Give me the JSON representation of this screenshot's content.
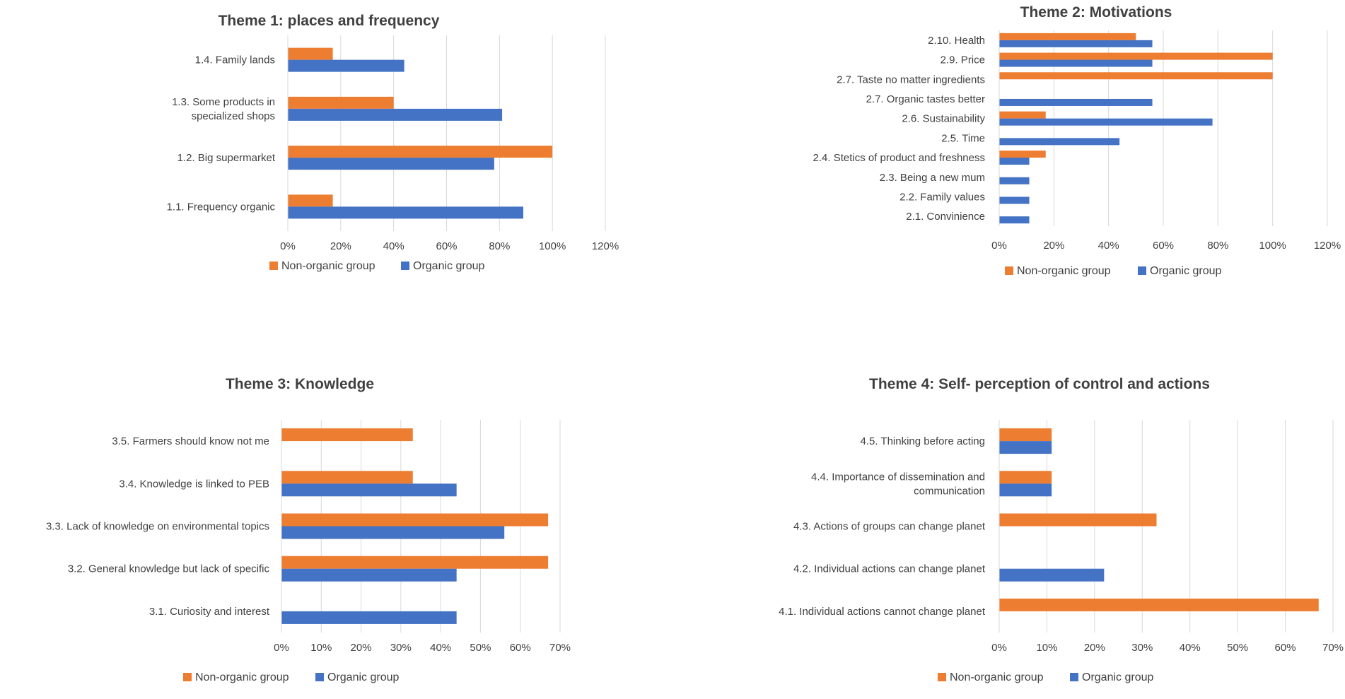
{
  "colors": {
    "non_organic": "#ED7D31",
    "organic": "#4472C4",
    "grid": "#D9D9D9",
    "text": "#404040"
  },
  "legend": {
    "non_organic": "Non-organic group",
    "organic": "Organic group"
  },
  "chart_data": [
    {
      "type": "bar",
      "orientation": "horizontal",
      "title": "Theme 1: places and frequency",
      "categories": [
        "1.1. Frequency organic",
        "1.2. Big supermarket",
        "1.3. Some products in specialized shops",
        "1.4. Family lands"
      ],
      "category_lines": [
        [
          "1.1. Frequency organic"
        ],
        [
          "1.2. Big supermarket"
        ],
        [
          "1.3. Some products in",
          "specialized shops"
        ],
        [
          "1.4. Family lands"
        ]
      ],
      "series": [
        {
          "name": "Non-organic group",
          "key": "non_organic",
          "values": [
            17,
            100,
            40,
            17
          ]
        },
        {
          "name": "Organic group",
          "key": "organic",
          "values": [
            89,
            78,
            81,
            44
          ]
        }
      ],
      "xlim": [
        0,
        120
      ],
      "ticks": [
        "0%",
        "20%",
        "40%",
        "60%",
        "80%",
        "100%",
        "120%"
      ],
      "legend_position": "bottom"
    },
    {
      "type": "bar",
      "orientation": "horizontal",
      "title": "Theme 2: Motivations",
      "categories": [
        "2.1. Convinience",
        "2.2. Family values",
        "2.3. Being a new mum",
        "2.4. Stetics of product and freshness",
        "2.5. Time",
        "2.6. Sustainability",
        "2.7. Organic tastes better",
        "2.7. Taste no matter ingredients",
        "2.9. Price",
        "2.10. Health"
      ],
      "category_lines": [
        [
          "2.1. Convinience"
        ],
        [
          "2.2. Family values"
        ],
        [
          "2.3. Being a new mum"
        ],
        [
          "2.4. Stetics of product and freshness"
        ],
        [
          "2.5. Time"
        ],
        [
          "2.6. Sustainability"
        ],
        [
          "2.7. Organic tastes better"
        ],
        [
          "2.7. Taste no matter ingredients"
        ],
        [
          "2.9. Price"
        ],
        [
          "2.10. Health"
        ]
      ],
      "series": [
        {
          "name": "Non-organic group",
          "key": "non_organic",
          "values": [
            0,
            0,
            0,
            17,
            0,
            17,
            0,
            100,
            100,
            50
          ]
        },
        {
          "name": "Organic group",
          "key": "organic",
          "values": [
            11,
            11,
            11,
            11,
            44,
            78,
            56,
            0,
            56,
            56
          ]
        }
      ],
      "xlim": [
        0,
        120
      ],
      "ticks": [
        "0%",
        "20%",
        "40%",
        "60%",
        "80%",
        "100%",
        "120%"
      ],
      "legend_position": "bottom"
    },
    {
      "type": "bar",
      "orientation": "horizontal",
      "title": "Theme 3: Knowledge",
      "categories": [
        "3.1. Curiosity and interest",
        "3.2. General knowledge but lack of specific",
        "3.3. Lack of knowledge on environmental topics",
        "3.4. Knowledge is linked to PEB",
        "3.5. Farmers should know not me"
      ],
      "category_lines": [
        [
          "3.1. Curiosity and interest"
        ],
        [
          "3.2. General knowledge but lack of specific"
        ],
        [
          "3.3. Lack of knowledge on environmental topics"
        ],
        [
          "3.4. Knowledge is linked to PEB"
        ],
        [
          "3.5. Farmers should know not me"
        ]
      ],
      "series": [
        {
          "name": "Non-organic group",
          "key": "non_organic",
          "values": [
            0,
            67,
            67,
            33,
            33
          ]
        },
        {
          "name": "Organic group",
          "key": "organic",
          "values": [
            44,
            44,
            56,
            44,
            0
          ]
        }
      ],
      "xlim": [
        0,
        70
      ],
      "ticks": [
        "0%",
        "10%",
        "20%",
        "30%",
        "40%",
        "50%",
        "60%",
        "70%"
      ],
      "legend_position": "bottom"
    },
    {
      "type": "bar",
      "orientation": "horizontal",
      "title": "Theme 4: Self- perception of control and actions",
      "categories": [
        "4.1. Individual actions cannot change planet",
        "4.2. Individual actions can change planet",
        "4.3. Actions of groups can change planet",
        "4.4. Importance of dissemination and communication",
        "4.5. Thinking before acting"
      ],
      "category_lines": [
        [
          "4.1. Individual actions cannot change planet"
        ],
        [
          "4.2. Individual actions can change planet"
        ],
        [
          "4.3. Actions of groups can change planet"
        ],
        [
          "4.4. Importance of dissemination and",
          "communication"
        ],
        [
          "4.5. Thinking before acting"
        ]
      ],
      "series": [
        {
          "name": "Non-organic group",
          "key": "non_organic",
          "values": [
            67,
            0,
            33,
            11,
            11
          ]
        },
        {
          "name": "Organic group",
          "key": "organic",
          "values": [
            0,
            22,
            0,
            11,
            11
          ]
        }
      ],
      "xlim": [
        0,
        70
      ],
      "ticks": [
        "0%",
        "10%",
        "20%",
        "30%",
        "40%",
        "50%",
        "60%",
        "70%"
      ],
      "legend_position": "bottom"
    }
  ]
}
